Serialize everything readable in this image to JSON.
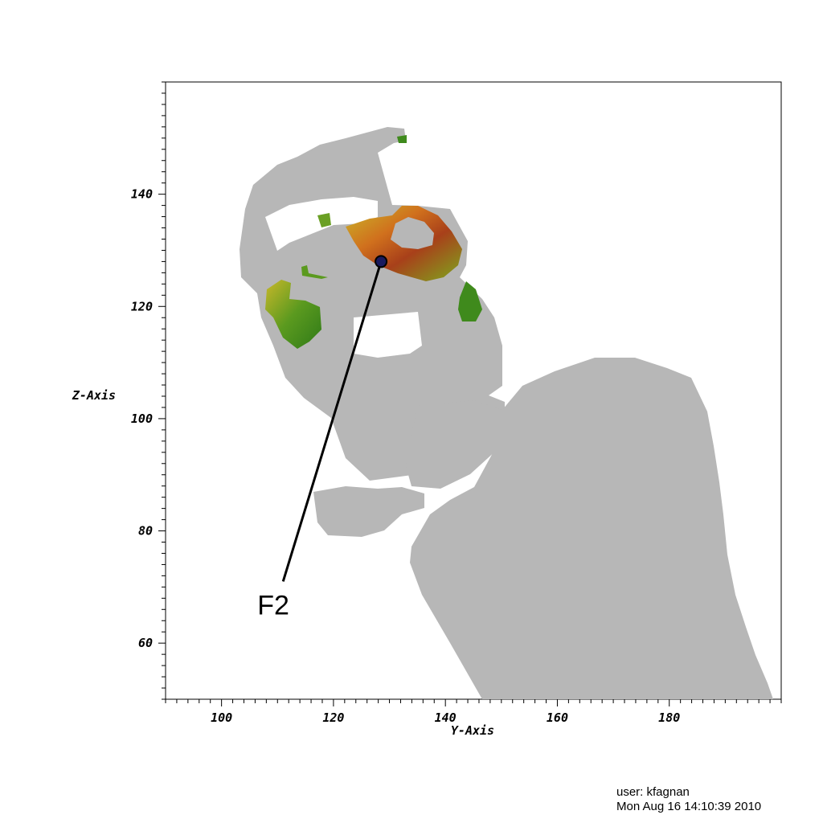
{
  "plot": {
    "xlabel": "Y-Axis",
    "ylabel": "Z-Axis",
    "xlim": [
      90,
      200
    ],
    "ylim": [
      50,
      160
    ],
    "x_ticks": [
      100,
      120,
      140,
      160,
      180
    ],
    "y_ticks": [
      60,
      80,
      100,
      120,
      140
    ],
    "x_minor_step": 2,
    "y_minor_step": 2
  },
  "annotation": {
    "label": "F2",
    "point": [
      128.5,
      128
    ],
    "label_anchor": [
      111,
      71
    ],
    "marker_color": "#1a1a5e"
  },
  "colors": {
    "mask_gray": "#b7b7b7",
    "field_green": "#3f8a1c",
    "field_yellow": "#c9b82a",
    "field_orange": "#d0701d",
    "field_brown": "#7a2a10"
  },
  "footer": {
    "user": "user: kfagnan",
    "timestamp": "Mon Aug 16 14:10:39 2010"
  }
}
